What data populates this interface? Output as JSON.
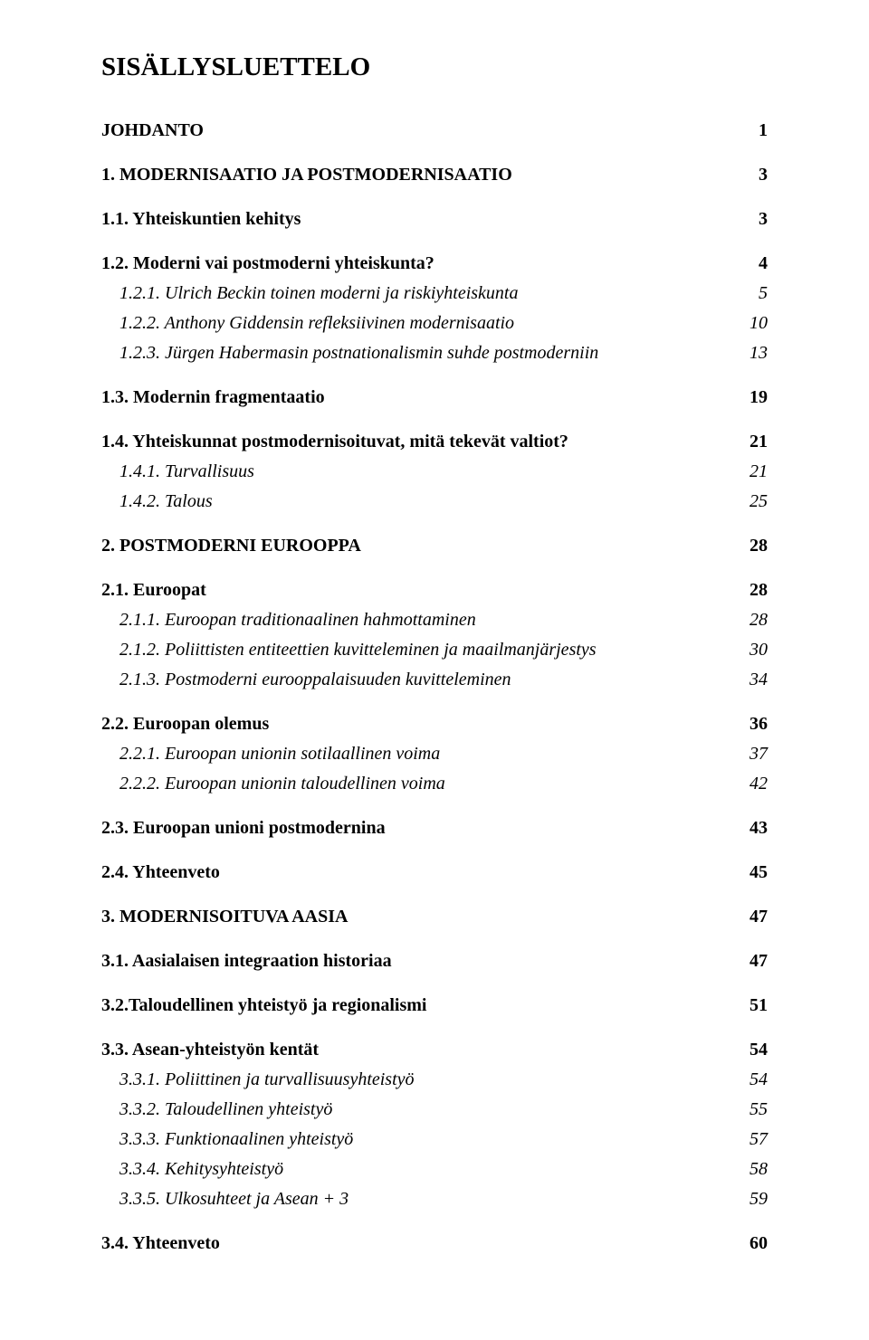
{
  "title": "SISÄLLYSLUETTELO",
  "toc": [
    {
      "label": "JOHDANTO",
      "page": "1",
      "cls": "level0"
    },
    {
      "label": "1. MODERNISAATIO JA POSTMODERNISAATIO",
      "page": "3",
      "cls": "level1-bold"
    },
    {
      "label": "1.1. Yhteiskuntien kehitys",
      "page": "3",
      "cls": "level2-bold"
    },
    {
      "label": "1.2. Moderni vai postmoderni yhteiskunta?",
      "page": "4",
      "cls": "level2-bold"
    },
    {
      "label": "1.2.1. Ulrich Beckin toinen moderni ja riskiyhteiskunta",
      "page": "5",
      "cls": "level3-italic"
    },
    {
      "label": "1.2.2. Anthony Giddensin refleksiivinen modernisaatio",
      "page": "10",
      "cls": "level3-italic"
    },
    {
      "label": "1.2.3. Jürgen Habermasin postnationalismin suhde postmoderniin",
      "page": "13",
      "cls": "level3-italic"
    },
    {
      "label": "1.3. Modernin fragmentaatio",
      "page": "19",
      "cls": "level2-bold"
    },
    {
      "label": "1.4. Yhteiskunnat postmodernisoituvat, mitä tekevät valtiot?",
      "page": "21",
      "cls": "level2-bold"
    },
    {
      "label": "1.4.1. Turvallisuus",
      "page": "21",
      "cls": "level3-italic"
    },
    {
      "label": "1.4.2. Talous",
      "page": "25",
      "cls": "level3-italic"
    },
    {
      "label": "2. POSTMODERNI EUROOPPA",
      "page": "28",
      "cls": "level1-bold"
    },
    {
      "label": "2.1. Euroopat",
      "page": "28",
      "cls": "level2-bold"
    },
    {
      "label": "2.1.1. Euroopan traditionaalinen hahmottaminen",
      "page": "28",
      "cls": "level3-italic"
    },
    {
      "label": "2.1.2. Poliittisten entiteettien kuvitteleminen ja maailmanjärjestys",
      "page": "30",
      "cls": "level3-italic"
    },
    {
      "label": "2.1.3. Postmoderni eurooppalaisuuden kuvitteleminen",
      "page": "34",
      "cls": "level3-italic"
    },
    {
      "label": "2.2. Euroopan olemus",
      "page": "36",
      "cls": "level2-bold"
    },
    {
      "label": "2.2.1. Euroopan unionin sotilaallinen voima",
      "page": "37",
      "cls": "level3-italic"
    },
    {
      "label": "2.2.2. Euroopan unionin taloudellinen voima",
      "page": "42",
      "cls": "level3-italic"
    },
    {
      "label": "2.3. Euroopan unioni postmodernina",
      "page": "43",
      "cls": "level2-bold"
    },
    {
      "label": "2.4. Yhteenveto",
      "page": "45",
      "cls": "level2-bold"
    },
    {
      "label": "3. MODERNISOITUVA AASIA",
      "page": "47",
      "cls": "level1-bold"
    },
    {
      "label": "3.1. Aasialaisen integraation historiaa",
      "page": "47",
      "cls": "level2-bold"
    },
    {
      "label": "3.2.Taloudellinen yhteistyö ja regionalismi",
      "page": "51",
      "cls": "level2-bold"
    },
    {
      "label": "3.3. Asean-yhteistyön kentät",
      "page": "54",
      "cls": "level2-bold"
    },
    {
      "label": "3.3.1. Poliittinen ja turvallisuusyhteistyö",
      "page": "54",
      "cls": "level3-italic"
    },
    {
      "label": "3.3.2. Taloudellinen yhteistyö",
      "page": "55",
      "cls": "level3-italic"
    },
    {
      "label": "3.3.3. Funktionaalinen yhteistyö",
      "page": "57",
      "cls": "level3-italic"
    },
    {
      "label": "3.3.4. Kehitysyhteistyö",
      "page": "58",
      "cls": "level3-italic"
    },
    {
      "label": "3.3.5. Ulkosuhteet ja Asean + 3",
      "page": "59",
      "cls": "level3-italic"
    },
    {
      "label": "3.4. Yhteenveto",
      "page": "60",
      "cls": "level2-bold"
    }
  ]
}
